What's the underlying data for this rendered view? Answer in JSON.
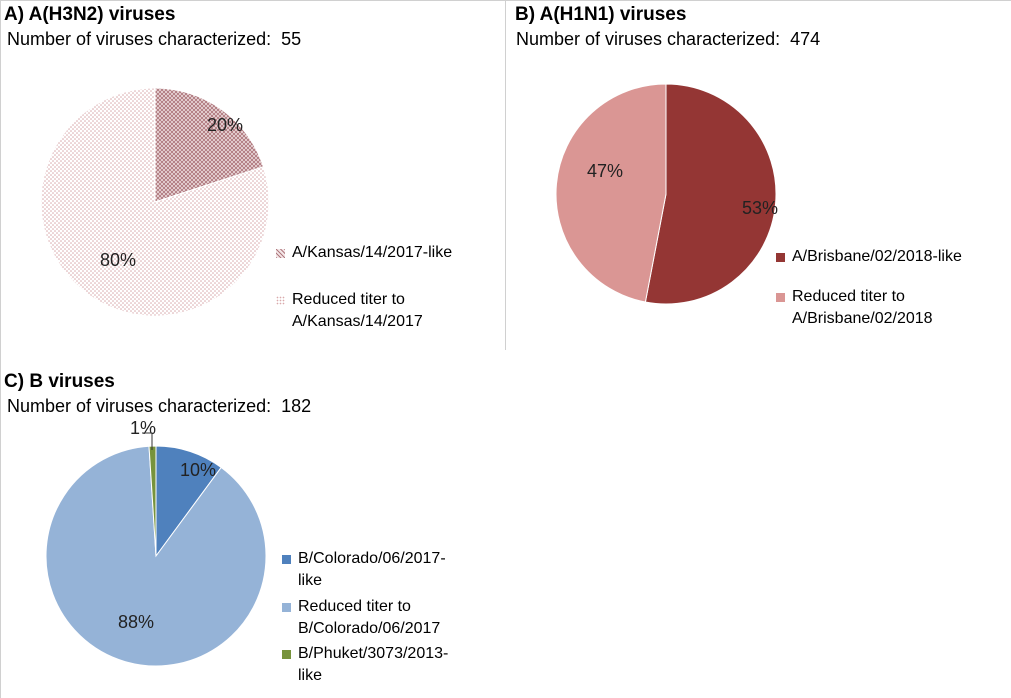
{
  "chart_data": [
    {
      "type": "pie",
      "title": "A) A(H3N2) viruses",
      "subtitle_label": "Number of viruses characterized:",
      "subtitle_value": "55",
      "slices": [
        {
          "label": "A/Kansas/14/2017-like",
          "value": 20,
          "value_label": "20%",
          "color": "#b9848a",
          "pattern": "crosshatch"
        },
        {
          "label": "Reduced titer to\nA/Kansas/14/2017",
          "value": 80,
          "value_label": "80%",
          "color": "#dbb3b5",
          "pattern": "dots"
        }
      ],
      "legend_position": "right"
    },
    {
      "type": "pie",
      "title": "B) A(H1N1) viruses",
      "subtitle_label": "Number of viruses characterized:",
      "subtitle_value": "474",
      "slices": [
        {
          "label": "A/Brisbane/02/2018-like",
          "value": 53,
          "value_label": "53%",
          "color": "#943634"
        },
        {
          "label": "Reduced titer to\nA/Brisbane/02/2018",
          "value": 47,
          "value_label": "47%",
          "color": "#da9694"
        }
      ],
      "legend_position": "right"
    },
    {
      "type": "pie",
      "title": "C) B viruses",
      "subtitle_label": "Number of viruses characterized:",
      "subtitle_value": "182",
      "slices": [
        {
          "label": "B/Colorado/06/2017-\nlike",
          "value": 10,
          "value_label": "10%",
          "color": "#4f81bd"
        },
        {
          "label": "Reduced titer to\nB/Colorado/06/2017",
          "value": 88,
          "value_label": "88%",
          "color": "#95b3d7"
        },
        {
          "label": "B/Phuket/3073/2013-\nlike",
          "value": 1,
          "value_label": "1%",
          "color": "#77933c"
        }
      ],
      "legend_position": "right"
    }
  ]
}
